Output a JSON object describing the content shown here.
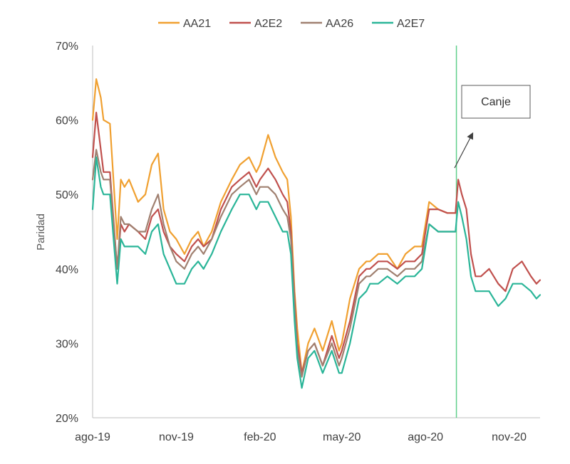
{
  "chart_data": {
    "type": "line",
    "title": "",
    "xlabel": "",
    "ylabel": "Paridad",
    "ylim": [
      20,
      70
    ],
    "y_ticks": [
      {
        "value": 20,
        "label": "20%"
      },
      {
        "value": 30,
        "label": "30%"
      },
      {
        "value": 40,
        "label": "40%"
      },
      {
        "value": 50,
        "label": "50%"
      },
      {
        "value": 60,
        "label": "60%"
      },
      {
        "value": 70,
        "label": "70%"
      }
    ],
    "x_ticks": [
      "ago-19",
      "nov-19",
      "feb-20",
      "may-20",
      "ago-20",
      "nov-20"
    ],
    "x_tick_dates": [
      "2019-08-01",
      "2019-11-01",
      "2020-02-01",
      "2020-05-01",
      "2020-08-01",
      "2020-11-01"
    ],
    "xlim": [
      "2019-08-01",
      "2020-12-05"
    ],
    "grid": false,
    "legend_position": "top",
    "vline": {
      "date": "2020-09-04",
      "color": "#5fd08a"
    },
    "annotation": {
      "text": "Canje"
    },
    "series": [
      {
        "name": "AA21",
        "color": "#f0a030",
        "x": [
          "2019-08-01",
          "2019-08-05",
          "2019-08-10",
          "2019-08-13",
          "2019-08-20",
          "2019-08-28",
          "2019-09-01",
          "2019-09-05",
          "2019-09-10",
          "2019-09-20",
          "2019-09-28",
          "2019-10-05",
          "2019-10-12",
          "2019-10-18",
          "2019-10-25",
          "2019-11-01",
          "2019-11-10",
          "2019-11-18",
          "2019-11-25",
          "2019-12-01",
          "2019-12-10",
          "2019-12-20",
          "2020-01-01",
          "2020-01-10",
          "2020-01-20",
          "2020-01-28",
          "2020-02-01",
          "2020-02-10",
          "2020-02-18",
          "2020-02-26",
          "2020-03-02",
          "2020-03-06",
          "2020-03-10",
          "2020-03-13",
          "2020-03-18",
          "2020-03-25",
          "2020-04-01",
          "2020-04-10",
          "2020-04-20",
          "2020-04-28",
          "2020-05-01",
          "2020-05-10",
          "2020-05-20",
          "2020-05-28",
          "2020-06-01",
          "2020-06-10",
          "2020-06-20",
          "2020-07-01",
          "2020-07-10",
          "2020-07-20",
          "2020-07-28",
          "2020-08-05",
          "2020-08-15",
          "2020-08-25",
          "2020-09-03"
        ],
        "values": [
          60,
          65.5,
          63,
          60,
          59.5,
          44,
          52,
          51,
          52,
          49,
          50,
          54,
          55.5,
          48,
          45,
          44,
          42,
          44,
          45,
          43,
          45,
          49,
          52,
          54,
          55,
          53,
          54,
          58,
          55,
          53,
          52,
          47,
          37,
          32,
          26,
          30,
          32,
          29,
          33,
          29,
          30,
          36,
          40,
          41,
          41,
          42,
          42,
          40,
          42,
          43,
          43,
          49,
          48,
          47.5,
          47.5
        ]
      },
      {
        "name": "A2E2",
        "color": "#c0504d",
        "x": [
          "2019-08-01",
          "2019-08-05",
          "2019-08-10",
          "2019-08-13",
          "2019-08-20",
          "2019-08-28",
          "2019-09-01",
          "2019-09-05",
          "2019-09-10",
          "2019-09-20",
          "2019-09-28",
          "2019-10-05",
          "2019-10-12",
          "2019-10-18",
          "2019-10-25",
          "2019-11-01",
          "2019-11-10",
          "2019-11-18",
          "2019-11-25",
          "2019-12-01",
          "2019-12-10",
          "2019-12-20",
          "2020-01-01",
          "2020-01-10",
          "2020-01-20",
          "2020-01-28",
          "2020-02-01",
          "2020-02-10",
          "2020-02-18",
          "2020-02-26",
          "2020-03-02",
          "2020-03-06",
          "2020-03-10",
          "2020-03-13",
          "2020-03-18",
          "2020-03-25",
          "2020-04-01",
          "2020-04-10",
          "2020-04-20",
          "2020-04-28",
          "2020-05-01",
          "2020-05-10",
          "2020-05-20",
          "2020-05-28",
          "2020-06-01",
          "2020-06-10",
          "2020-06-20",
          "2020-07-01",
          "2020-07-10",
          "2020-07-20",
          "2020-07-28",
          "2020-08-05",
          "2020-08-15",
          "2020-08-25",
          "2020-09-03",
          "2020-09-06",
          "2020-09-10",
          "2020-09-15",
          "2020-09-20",
          "2020-09-25",
          "2020-10-01",
          "2020-10-10",
          "2020-10-20",
          "2020-10-28",
          "2020-11-05",
          "2020-11-15",
          "2020-11-25",
          "2020-12-01",
          "2020-12-05"
        ],
        "values": [
          55,
          61,
          56,
          53,
          53,
          40,
          46,
          45,
          46,
          45,
          44,
          47,
          48,
          45,
          43,
          42,
          41,
          43,
          44,
          43,
          44,
          48,
          51,
          52,
          53,
          51,
          52,
          53.5,
          52,
          50,
          49,
          45,
          36,
          30,
          26,
          29,
          30,
          27,
          31,
          28,
          29,
          33,
          39,
          40,
          40,
          41,
          41,
          40,
          41,
          41,
          42,
          48,
          48,
          47.5,
          47.5,
          52,
          50,
          48,
          42,
          39,
          39,
          40,
          38,
          37,
          40,
          41,
          39,
          38,
          38.5
        ]
      },
      {
        "name": "AA26",
        "color": "#a08070",
        "x": [
          "2019-08-01",
          "2019-08-05",
          "2019-08-10",
          "2019-08-13",
          "2019-08-20",
          "2019-08-28",
          "2019-09-01",
          "2019-09-05",
          "2019-09-10",
          "2019-09-20",
          "2019-09-28",
          "2019-10-05",
          "2019-10-12",
          "2019-10-18",
          "2019-10-25",
          "2019-11-01",
          "2019-11-10",
          "2019-11-18",
          "2019-11-25",
          "2019-12-01",
          "2019-12-10",
          "2019-12-20",
          "2020-01-01",
          "2020-01-10",
          "2020-01-20",
          "2020-01-28",
          "2020-02-01",
          "2020-02-10",
          "2020-02-18",
          "2020-02-26",
          "2020-03-02",
          "2020-03-06",
          "2020-03-10",
          "2020-03-13",
          "2020-03-18",
          "2020-03-25",
          "2020-04-01",
          "2020-04-10",
          "2020-04-20",
          "2020-04-28",
          "2020-05-01",
          "2020-05-10",
          "2020-05-20",
          "2020-05-28",
          "2020-06-01",
          "2020-06-10",
          "2020-06-20",
          "2020-07-01",
          "2020-07-10",
          "2020-07-20",
          "2020-07-28",
          "2020-08-05",
          "2020-08-15",
          "2020-08-25",
          "2020-09-03"
        ],
        "values": [
          52,
          56,
          53,
          52,
          52,
          40,
          47,
          46,
          46,
          45,
          45,
          48,
          50,
          46,
          43,
          41,
          40,
          42,
          43,
          42,
          44,
          47,
          50,
          51,
          52,
          50,
          51,
          51,
          50,
          48,
          47,
          44,
          35,
          29,
          25.5,
          29,
          30,
          27,
          30,
          27,
          28,
          32,
          38,
          39,
          39,
          40,
          40,
          39,
          40,
          40,
          41,
          46,
          45,
          45,
          45
        ]
      },
      {
        "name": "A2E7",
        "color": "#2ab598",
        "x": [
          "2019-08-01",
          "2019-08-05",
          "2019-08-10",
          "2019-08-13",
          "2019-08-20",
          "2019-08-28",
          "2019-09-01",
          "2019-09-05",
          "2019-09-10",
          "2019-09-20",
          "2019-09-28",
          "2019-10-05",
          "2019-10-12",
          "2019-10-18",
          "2019-10-25",
          "2019-11-01",
          "2019-11-10",
          "2019-11-18",
          "2019-11-25",
          "2019-12-01",
          "2019-12-10",
          "2019-12-20",
          "2020-01-01",
          "2020-01-10",
          "2020-01-20",
          "2020-01-28",
          "2020-02-01",
          "2020-02-10",
          "2020-02-18",
          "2020-02-26",
          "2020-03-02",
          "2020-03-06",
          "2020-03-10",
          "2020-03-13",
          "2020-03-18",
          "2020-03-25",
          "2020-04-01",
          "2020-04-10",
          "2020-04-20",
          "2020-04-28",
          "2020-05-01",
          "2020-05-10",
          "2020-05-20",
          "2020-05-28",
          "2020-06-01",
          "2020-06-10",
          "2020-06-20",
          "2020-07-01",
          "2020-07-10",
          "2020-07-20",
          "2020-07-28",
          "2020-08-05",
          "2020-08-15",
          "2020-08-25",
          "2020-09-03",
          "2020-09-06",
          "2020-09-10",
          "2020-09-15",
          "2020-09-20",
          "2020-09-25",
          "2020-10-01",
          "2020-10-10",
          "2020-10-20",
          "2020-10-28",
          "2020-11-05",
          "2020-11-15",
          "2020-11-25",
          "2020-12-01",
          "2020-12-05"
        ],
        "values": [
          48,
          55,
          51,
          50,
          50,
          38,
          44,
          43,
          43,
          43,
          42,
          45,
          46,
          42,
          40,
          38,
          38,
          40,
          41,
          40,
          42,
          45,
          48,
          50,
          50,
          48,
          49,
          49,
          47,
          45,
          45,
          42,
          33,
          28,
          24,
          28,
          29,
          26,
          29,
          26,
          26,
          30,
          36,
          37,
          38,
          38,
          39,
          38,
          39,
          39,
          40,
          46,
          45,
          45,
          45,
          49,
          47,
          44,
          39,
          37,
          37,
          37,
          35,
          36,
          38,
          38,
          37,
          36,
          36.5
        ]
      }
    ]
  }
}
